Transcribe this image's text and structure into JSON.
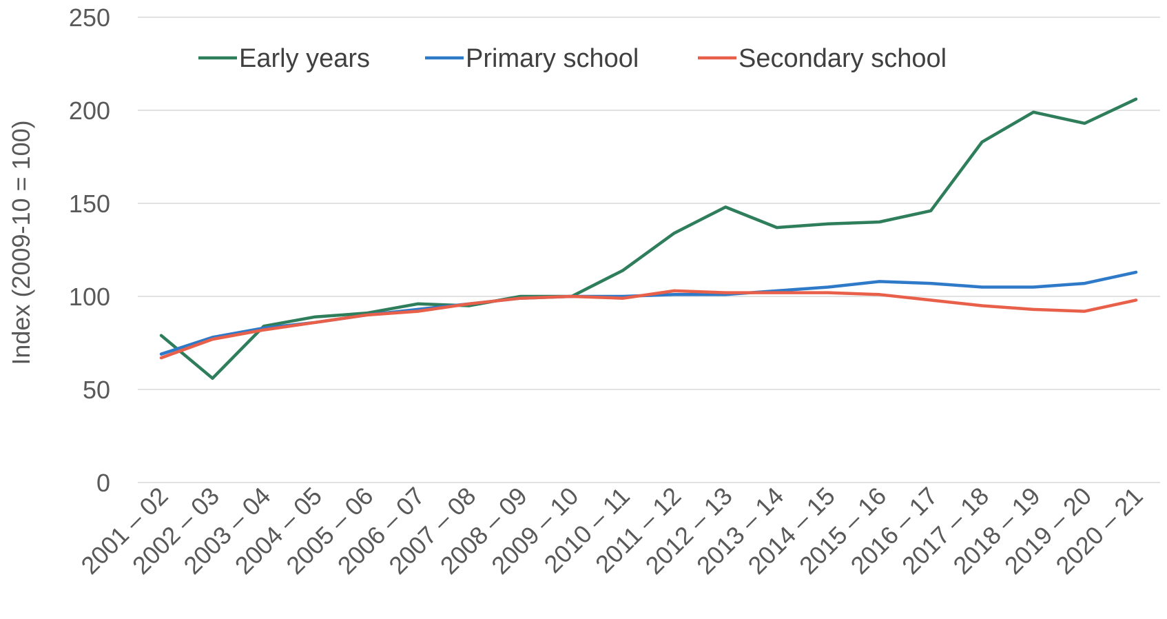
{
  "chart_data": {
    "type": "line",
    "title": "",
    "xlabel": "",
    "ylabel": "Index (2009-10 = 100)",
    "ylim": [
      0,
      250
    ],
    "yticks": [
      0,
      50,
      100,
      150,
      200,
      250
    ],
    "grid": true,
    "legend_position": "top",
    "categories": [
      "2001 – 02",
      "2002 – 03",
      "2003 – 04",
      "2004 – 05",
      "2005 – 06",
      "2006 – 07",
      "2007 – 08",
      "2008 – 09",
      "2009 – 10",
      "2010 – 11",
      "2011 – 12",
      "2012 – 13",
      "2013 – 14",
      "2014 – 15",
      "2015 – 16",
      "2016 – 17",
      "2017 – 18",
      "2018 – 19",
      "2019 – 20",
      "2020 – 21"
    ],
    "series": [
      {
        "name": "Early years",
        "color": "#2e7d5b",
        "values": [
          79,
          56,
          84,
          89,
          91,
          96,
          95,
          100,
          100,
          114,
          134,
          148,
          137,
          139,
          140,
          146,
          183,
          199,
          193,
          206
        ]
      },
      {
        "name": "Primary school",
        "color": "#2f7ac8",
        "values": [
          69,
          78,
          83,
          86,
          90,
          93,
          96,
          99,
          100,
          100,
          101,
          101,
          103,
          105,
          108,
          107,
          105,
          105,
          107,
          113
        ]
      },
      {
        "name": "Secondary school",
        "color": "#e8604a",
        "values": [
          67,
          77,
          82,
          86,
          90,
          92,
          96,
          99,
          100,
          99,
          103,
          102,
          102,
          102,
          101,
          98,
          95,
          93,
          92,
          98
        ]
      }
    ]
  }
}
